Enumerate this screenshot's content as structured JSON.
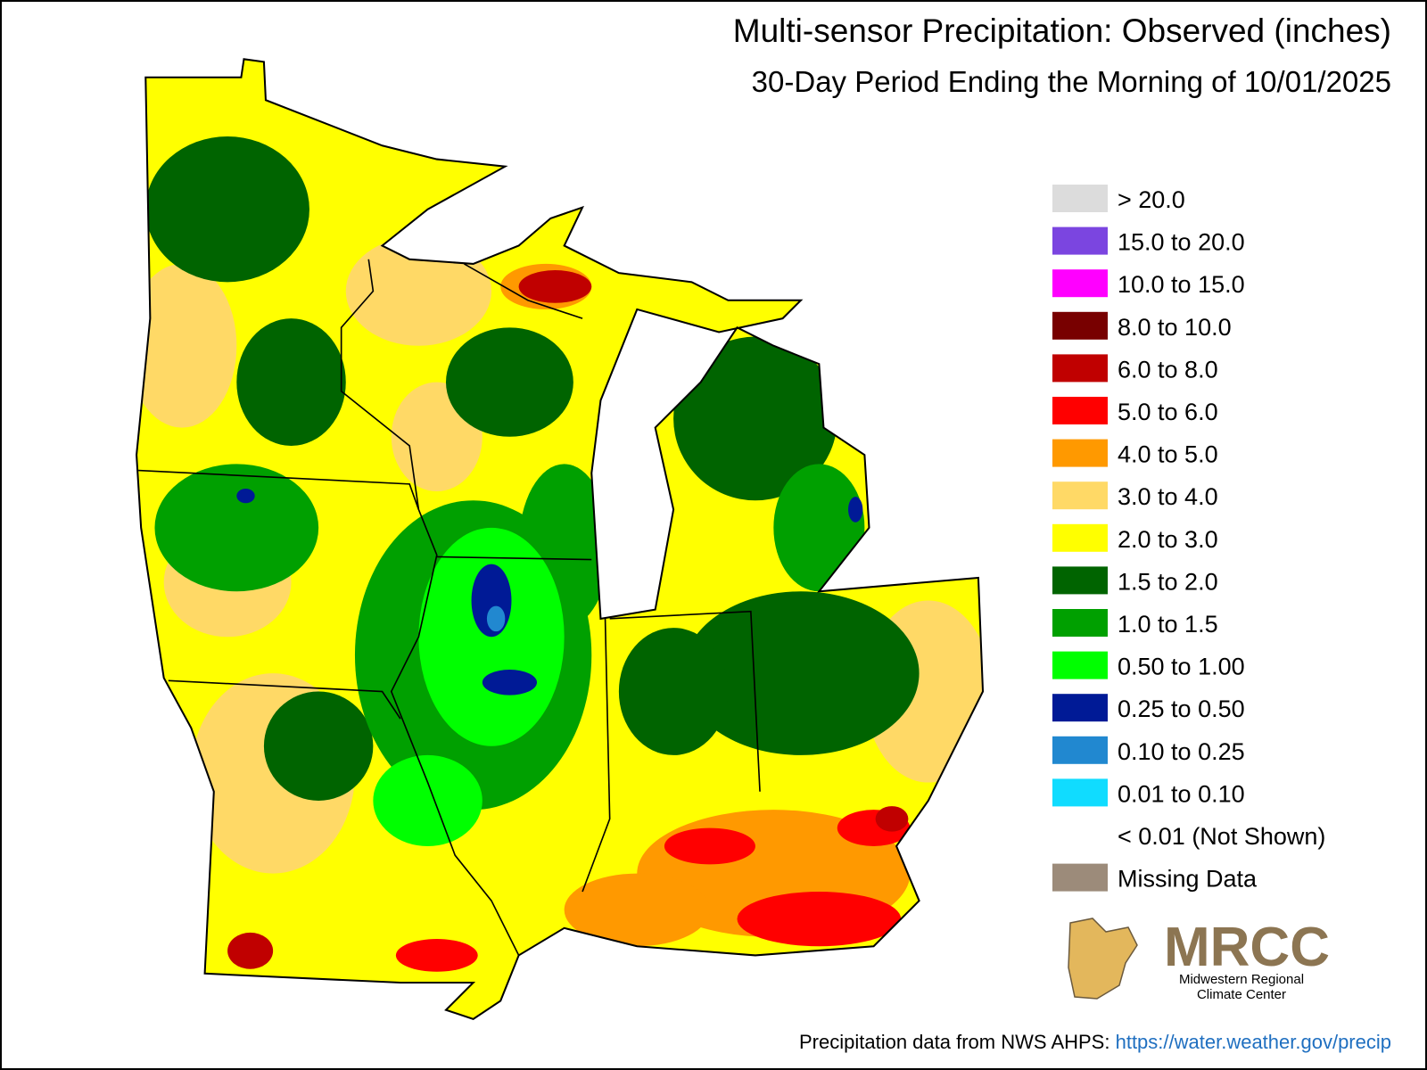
{
  "header": {
    "title": "Multi-sensor Precipitation: Observed (inches)",
    "subtitle": "30-Day Period Ending the Morning of 10/01/2025"
  },
  "legend": {
    "items": [
      {
        "label": "> 20.0",
        "color": "#dcdcdc"
      },
      {
        "label": "15.0 to 20.0",
        "color": "#7b45e0"
      },
      {
        "label": "10.0 to 15.0",
        "color": "#ff00ff"
      },
      {
        "label": "8.0 to 10.0",
        "color": "#780000"
      },
      {
        "label": "6.0 to 8.0",
        "color": "#c00000"
      },
      {
        "label": "5.0 to 6.0",
        "color": "#ff0000"
      },
      {
        "label": "4.0 to 5.0",
        "color": "#ff9900"
      },
      {
        "label": "3.0 to 4.0",
        "color": "#ffd966"
      },
      {
        "label": "2.0 to 3.0",
        "color": "#ffff00"
      },
      {
        "label": "1.5 to 2.0",
        "color": "#006400"
      },
      {
        "label": "1.0 to 1.5",
        "color": "#00a000"
      },
      {
        "label": "0.50 to 1.00",
        "color": "#00ff00"
      },
      {
        "label": "0.25 to 0.50",
        "color": "#001a96"
      },
      {
        "label": "0.10 to 0.25",
        "color": "#2188d0"
      },
      {
        "label": "0.01 to 0.10",
        "color": "#10dcff"
      },
      {
        "label": "< 0.01 (Not Shown)"
      },
      {
        "label": "Missing Data",
        "color": "#9c8b7a"
      }
    ]
  },
  "logo": {
    "acronym": "MRCC",
    "line1": "Midwestern Regional",
    "line2": "Climate Center"
  },
  "footer": {
    "source": "Precipitation data from NWS AHPS:",
    "link": "https://water.weather.gov/precip"
  }
}
